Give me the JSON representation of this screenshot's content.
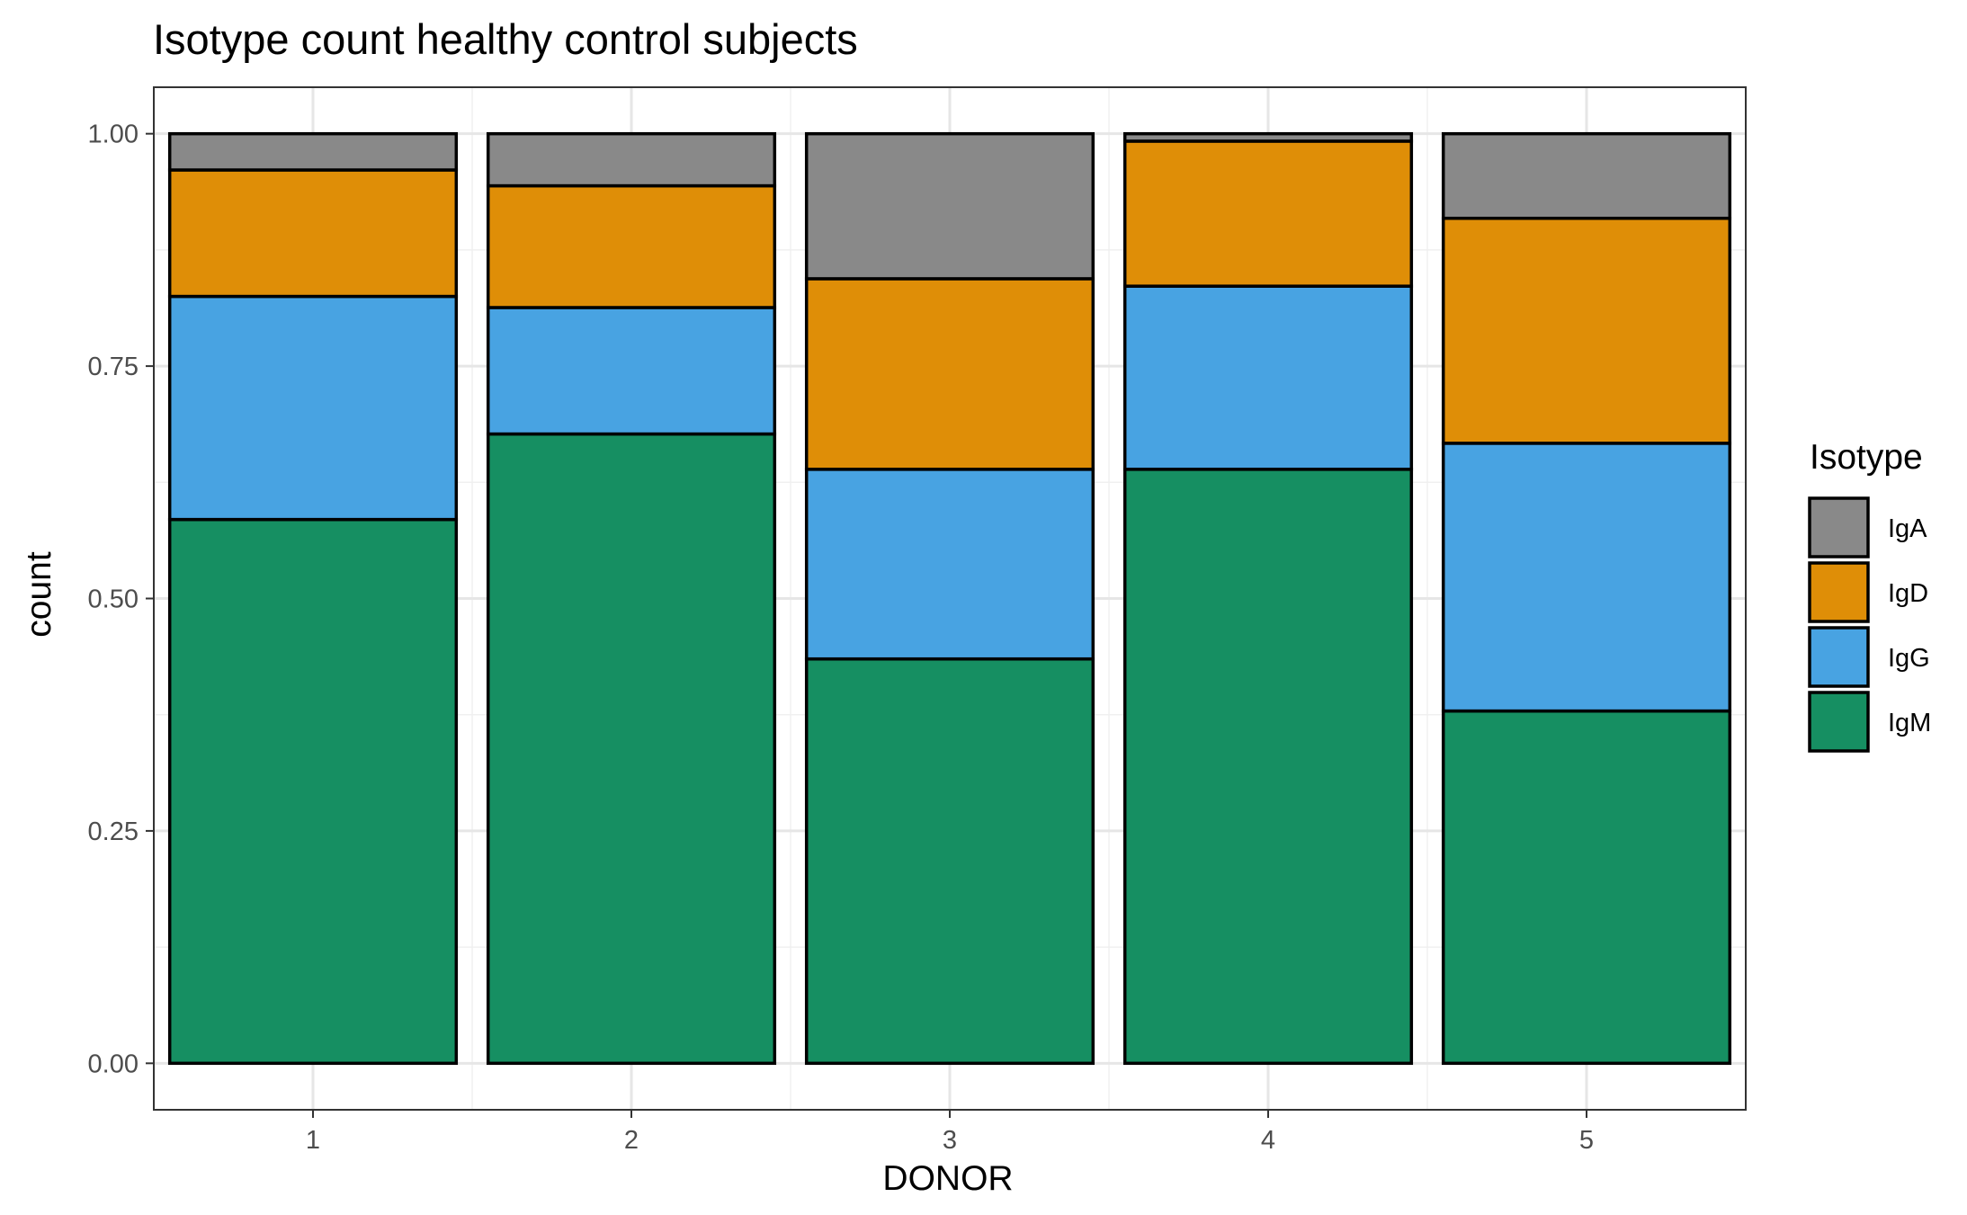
{
  "chart_data": {
    "type": "bar",
    "stacked": true,
    "title": "Isotype count healthy control subjects",
    "xlabel": "DONOR",
    "ylabel": "count",
    "categories": [
      "1",
      "2",
      "3",
      "4",
      "5"
    ],
    "yticks": [
      "0.00",
      "0.25",
      "0.50",
      "0.75",
      "1.00"
    ],
    "ylim": [
      -0.05,
      1.05
    ],
    "grid": true,
    "legend": {
      "title": "Isotype",
      "position": "right"
    },
    "series": [
      {
        "name": "IgM",
        "color": "#168f62",
        "values": [
          0.585,
          0.677,
          0.435,
          0.639,
          0.379
        ]
      },
      {
        "name": "IgG",
        "color": "#48a3e2",
        "values": [
          0.24,
          0.136,
          0.204,
          0.197,
          0.288
        ]
      },
      {
        "name": "IgD",
        "color": "#df8e07",
        "values": [
          0.136,
          0.131,
          0.205,
          0.156,
          0.242
        ]
      },
      {
        "name": "IgA",
        "color": "#898989",
        "values": [
          0.039,
          0.056,
          0.156,
          0.008,
          0.091
        ]
      }
    ]
  }
}
